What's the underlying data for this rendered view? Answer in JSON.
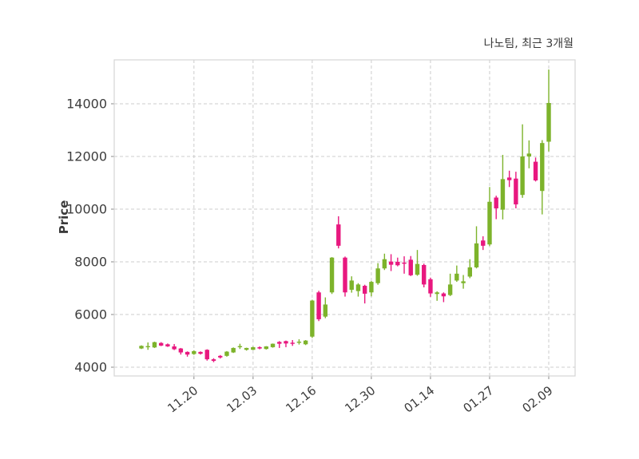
{
  "figure": {
    "title": "나노팀, 최근 3개월",
    "ylabel": "Price"
  },
  "chart_data": {
    "type": "candlestick",
    "title": "나노팀, 최근 3개월",
    "ylabel": "Price",
    "xlabel": "",
    "grid": "dashed",
    "legend": "none",
    "y_ticks": [
      4000,
      6000,
      8000,
      10000,
      12000,
      14000
    ],
    "ylim": [
      3670,
      15670
    ],
    "x_tick_labels": [
      "11.20",
      "12.03",
      "12.16",
      "12.30",
      "01.14",
      "01.27",
      "02.09"
    ],
    "x_tick_indices": [
      8,
      17,
      26,
      35,
      44,
      53,
      62
    ],
    "colors": {
      "up": "#7db32b",
      "down": "#e8187f",
      "grid": "#cccccc",
      "spine": "#d5d5d5",
      "tick": "#8a8a8a",
      "text": "#3c3c3c",
      "background": "#ffffff"
    },
    "ohlc_format": [
      "open",
      "high",
      "low",
      "close"
    ],
    "candles": [
      [
        4710,
        4830,
        4690,
        4810
      ],
      [
        4790,
        4940,
        4660,
        4800
      ],
      [
        4750,
        4970,
        4730,
        4950
      ],
      [
        4920,
        4950,
        4800,
        4820
      ],
      [
        4870,
        4900,
        4770,
        4790
      ],
      [
        4790,
        4880,
        4650,
        4680
      ],
      [
        4710,
        4730,
        4480,
        4560
      ],
      [
        4580,
        4600,
        4400,
        4480
      ],
      [
        4500,
        4640,
        4470,
        4610
      ],
      [
        4580,
        4600,
        4480,
        4510
      ],
      [
        4660,
        4680,
        4250,
        4300
      ],
      [
        4300,
        4340,
        4190,
        4240
      ],
      [
        4430,
        4460,
        4330,
        4370
      ],
      [
        4430,
        4610,
        4400,
        4590
      ],
      [
        4560,
        4750,
        4540,
        4730
      ],
      [
        4780,
        4890,
        4690,
        4800
      ],
      [
        4660,
        4740,
        4630,
        4730
      ],
      [
        4660,
        4780,
        4650,
        4760
      ],
      [
        4760,
        4790,
        4680,
        4710
      ],
      [
        4690,
        4800,
        4670,
        4790
      ],
      [
        4760,
        4900,
        4740,
        4890
      ],
      [
        4960,
        4990,
        4730,
        4890
      ],
      [
        4990,
        5010,
        4760,
        4900
      ],
      [
        4930,
        5030,
        4810,
        4920
      ],
      [
        4950,
        5060,
        4860,
        4970
      ],
      [
        4870,
        5030,
        4840,
        5010
      ],
      [
        5160,
        6560,
        5110,
        6530
      ],
      [
        6840,
        6900,
        5750,
        5820
      ],
      [
        5920,
        6650,
        5860,
        6380
      ],
      [
        6840,
        8180,
        6780,
        8160
      ],
      [
        9420,
        9730,
        8510,
        8610
      ],
      [
        8160,
        8200,
        6680,
        6840
      ],
      [
        6940,
        7450,
        6830,
        7290
      ],
      [
        6890,
        7190,
        6680,
        7140
      ],
      [
        7090,
        7130,
        6420,
        6790
      ],
      [
        6840,
        7270,
        6690,
        7240
      ],
      [
        7190,
        7950,
        7130,
        7750
      ],
      [
        7750,
        8310,
        7690,
        8100
      ],
      [
        8010,
        8290,
        7650,
        7890
      ],
      [
        8000,
        8160,
        7830,
        7870
      ],
      [
        7970,
        8210,
        7550,
        7930
      ],
      [
        8080,
        8220,
        7460,
        7490
      ],
      [
        7510,
        8450,
        7470,
        7920
      ],
      [
        7880,
        7930,
        7030,
        7140
      ],
      [
        7340,
        7400,
        6670,
        6800
      ],
      [
        6780,
        6880,
        6520,
        6840
      ],
      [
        6800,
        6840,
        6470,
        6690
      ],
      [
        6740,
        7550,
        6700,
        7140
      ],
      [
        7290,
        7860,
        7240,
        7550
      ],
      [
        7190,
        7500,
        6980,
        7260
      ],
      [
        7440,
        8100,
        7380,
        7790
      ],
      [
        7790,
        9350,
        7750,
        8700
      ],
      [
        8810,
        8970,
        8450,
        8610
      ],
      [
        8660,
        10840,
        8600,
        10280
      ],
      [
        10440,
        10510,
        9620,
        10030
      ],
      [
        9980,
        12060,
        9610,
        11140
      ],
      [
        11200,
        11460,
        10840,
        11100
      ],
      [
        11160,
        11420,
        10030,
        10180
      ],
      [
        10540,
        13220,
        10430,
        12000
      ],
      [
        12000,
        12610,
        11550,
        12110
      ],
      [
        11800,
        11960,
        11050,
        11090
      ],
      [
        10690,
        12620,
        9800,
        12510
      ],
      [
        12560,
        15300,
        12190,
        14030
      ]
    ]
  }
}
